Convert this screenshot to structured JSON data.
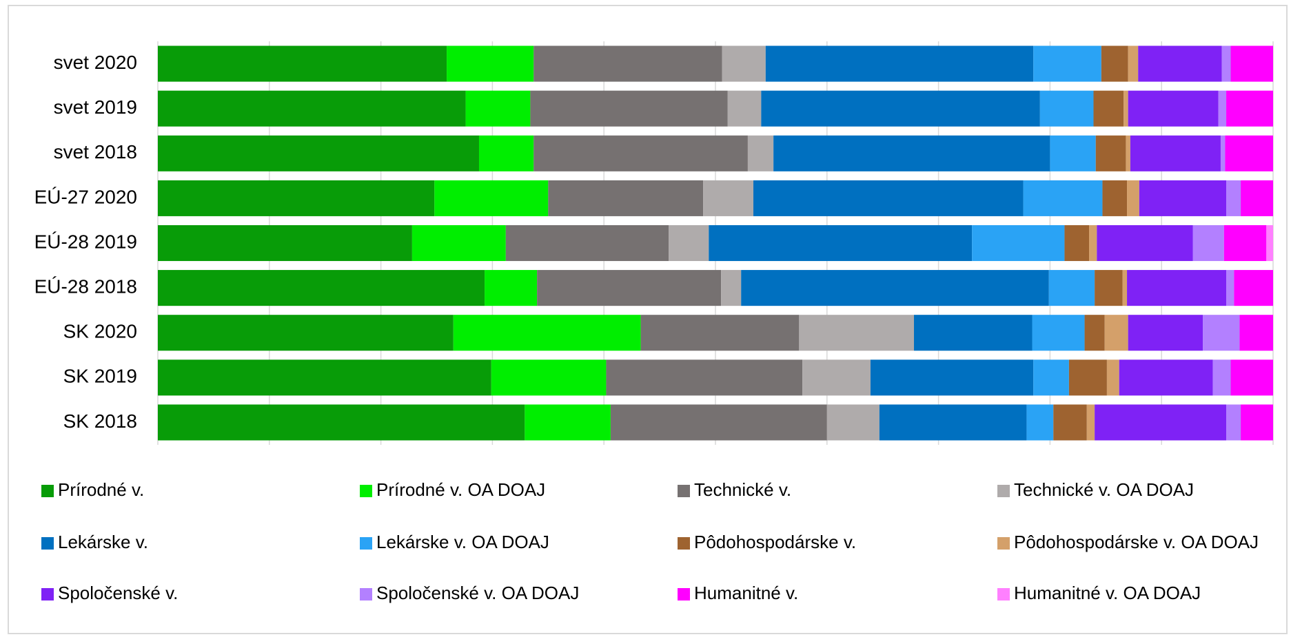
{
  "chart_data": {
    "type": "stacked_hbar",
    "categories": [
      "svet 2020",
      "svet 2019",
      "svet 2018",
      "EÚ-27 2020",
      "EÚ-28 2019",
      "EÚ-28 2018",
      "SK 2020",
      "SK 2019",
      "SK 2018"
    ],
    "xlim": [
      0,
      100
    ],
    "xticks": [
      0,
      10,
      20,
      30,
      40,
      50,
      60,
      70,
      80,
      90,
      100
    ],
    "grid": true,
    "series": [
      {
        "name": "Prírodné v.",
        "color": "#089c08",
        "values": [
          25.9,
          27.6,
          28.8,
          24.8,
          22.8,
          29.3,
          26.5,
          29.9,
          32.9
        ]
      },
      {
        "name": "Prírodné v. OA DOAJ",
        "color": "#00ee00",
        "values": [
          7.8,
          5.8,
          4.9,
          10.2,
          8.4,
          4.7,
          16.8,
          10.3,
          7.7
        ]
      },
      {
        "name": "Technické v.",
        "color": "#767171",
        "values": [
          16.9,
          17.7,
          19.2,
          13.9,
          14.6,
          16.5,
          14.2,
          17.6,
          19.4
        ]
      },
      {
        "name": "Technické v. OA DOAJ",
        "color": "#afabab",
        "values": [
          3.9,
          3.0,
          2.3,
          4.5,
          3.6,
          1.8,
          10.3,
          6.1,
          4.7
        ]
      },
      {
        "name": "Lekárske v.",
        "color": "#0070c0",
        "values": [
          24.0,
          25.0,
          24.8,
          24.2,
          23.6,
          27.6,
          10.6,
          14.6,
          13.2
        ]
      },
      {
        "name": "Lekárske v. OA DOAJ",
        "color": "#2aa3f5",
        "values": [
          6.1,
          4.8,
          4.1,
          7.1,
          8.3,
          4.1,
          4.7,
          3.2,
          2.4
        ]
      },
      {
        "name": "Pôdohospodárske v.",
        "color": "#9e6330",
        "values": [
          2.4,
          2.7,
          2.7,
          2.2,
          2.2,
          2.5,
          1.8,
          3.4,
          3.0
        ]
      },
      {
        "name": "Pôdohospodárske v. OA DOAJ",
        "color": "#d4a06a",
        "values": [
          0.9,
          0.4,
          0.4,
          1.1,
          0.7,
          0.4,
          2.1,
          1.1,
          0.7
        ]
      },
      {
        "name": "Spoločenské v.",
        "color": "#7f22f5",
        "values": [
          7.5,
          8.1,
          8.1,
          7.8,
          8.6,
          8.9,
          6.7,
          8.4,
          11.8
        ]
      },
      {
        "name": "Spoločenské v. OA DOAJ",
        "color": "#b380ff",
        "values": [
          0.8,
          0.7,
          0.4,
          1.3,
          2.8,
          0.7,
          3.3,
          1.6,
          1.3
        ]
      },
      {
        "name": "Humanitné v.",
        "color": "#ff00ff",
        "values": [
          3.8,
          4.2,
          4.3,
          2.9,
          3.8,
          3.5,
          3.0,
          3.8,
          2.9
        ]
      },
      {
        "name": "Humanitné v. OA DOAJ",
        "color": "#ff80ff",
        "values": [
          0,
          0,
          0,
          0,
          0.6,
          0,
          0,
          0,
          0
        ]
      }
    ]
  }
}
